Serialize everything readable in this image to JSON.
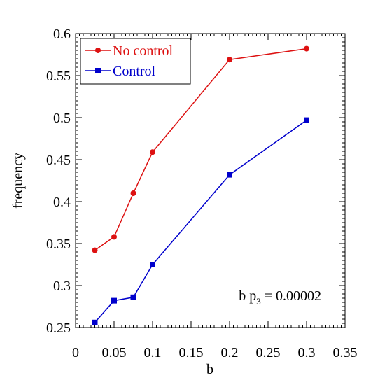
{
  "chart_data": {
    "type": "line",
    "title": "",
    "xlabel": "b",
    "ylabel": "frequency",
    "xlim": [
      0,
      0.35
    ],
    "ylim": [
      0.25,
      0.6
    ],
    "xticks": [
      0,
      0.05,
      0.1,
      0.15,
      0.2,
      0.25,
      0.3,
      0.35
    ],
    "xtick_labels": [
      "0",
      "0.05",
      "0.1",
      "0.15",
      "0.2",
      "0.25",
      "0.3",
      "0.35"
    ],
    "yticks": [
      0.25,
      0.3,
      0.35,
      0.4,
      0.45,
      0.5,
      0.55,
      0.6
    ],
    "ytick_labels": [
      "0.25",
      "0.3",
      "0.35",
      "0.4",
      "0.45",
      "0.5",
      "0.55",
      "0.6"
    ],
    "grid": false,
    "legend_position": "top-left",
    "annotation": {
      "text_prefix": "b p",
      "subscript": "3",
      "text_suffix": " = 0.00002"
    },
    "series": [
      {
        "name": "No control",
        "color": "#dd1111",
        "marker": "circle",
        "x": [
          0.025,
          0.05,
          0.075,
          0.1,
          0.2,
          0.3
        ],
        "y": [
          0.342,
          0.358,
          0.41,
          0.459,
          0.569,
          0.582
        ]
      },
      {
        "name": "Control",
        "color": "#0000cc",
        "marker": "square",
        "x": [
          0.025,
          0.05,
          0.075,
          0.1,
          0.2,
          0.3
        ],
        "y": [
          0.256,
          0.282,
          0.286,
          0.325,
          0.432,
          0.497
        ]
      }
    ]
  }
}
